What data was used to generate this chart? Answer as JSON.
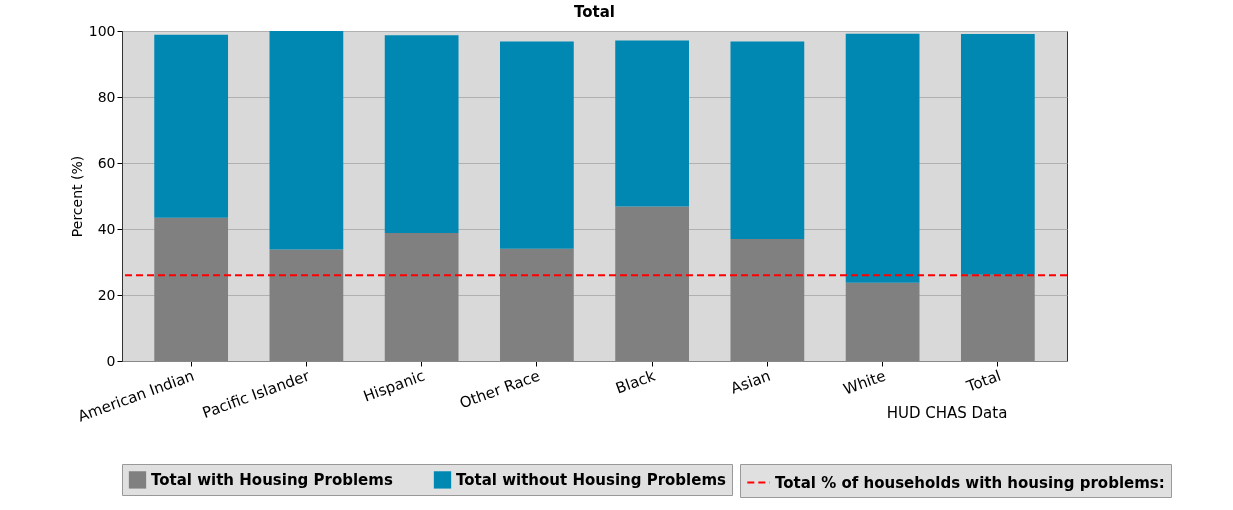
{
  "chart_data": {
    "type": "bar",
    "title": "Total",
    "ylabel": "Percent (%)",
    "categories": [
      "American Indian",
      "Pacific Islander",
      "Hispanic",
      "Other Race",
      "Black",
      "Asian",
      "White",
      "Total"
    ],
    "series": [
      {
        "name": "Total with Housing Problems",
        "color": "#808080",
        "values": [
          43.4,
          33.8,
          38.8,
          34.0,
          46.8,
          37.0,
          23.7,
          26.1
        ]
      },
      {
        "name": "Total without Housing Problems",
        "color": "#0088b3",
        "values": [
          55.5,
          66.2,
          59.9,
          62.8,
          50.3,
          59.8,
          75.5,
          73.0
        ]
      }
    ],
    "stacked": true,
    "ylim": [
      0,
      100
    ],
    "yticks": [
      0,
      20,
      40,
      60,
      80,
      100
    ],
    "grid": "y",
    "legend": "bottom",
    "ref_lines": [
      {
        "axis": "y",
        "value": 26,
        "label": "Total % of households with housing problems:",
        "color": "#ff0000",
        "line_style": "dashed"
      }
    ],
    "annotations": [
      "HUD CHAS Data"
    ]
  }
}
